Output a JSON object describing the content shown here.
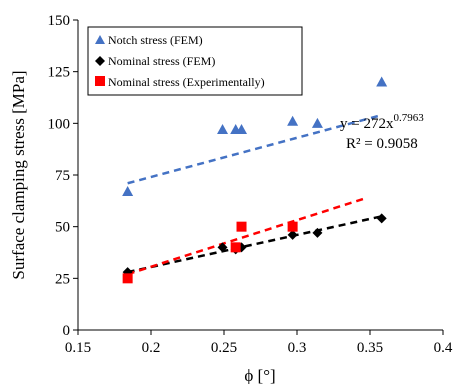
{
  "chart_data": {
    "type": "scatter",
    "xlabel": "ϕ [°]",
    "ylabel": "Surface clamping stress [MPa]",
    "xlim": [
      0.15,
      0.4
    ],
    "ylim": [
      0,
      150
    ],
    "xticks": [
      0.15,
      0.2,
      0.25,
      0.3,
      0.35,
      0.4
    ],
    "xtick_labels": [
      "0.15",
      "0.2",
      "0.25",
      "0.3",
      "0.35",
      "0.4"
    ],
    "yticks": [
      0,
      25,
      50,
      75,
      100,
      125,
      150
    ],
    "ytick_labels": [
      "0",
      "25",
      "50",
      "75",
      "100",
      "125",
      "150"
    ],
    "grid": false,
    "legend_position": "top-left",
    "series": [
      {
        "name": "Notch stress (FEM)",
        "marker": "triangle",
        "color": "#4472c4",
        "x": [
          0.184,
          0.249,
          0.258,
          0.262,
          0.297,
          0.314,
          0.358
        ],
        "y": [
          67,
          97,
          97,
          97,
          101,
          100,
          120
        ],
        "trend": {
          "x": [
            0.184,
            0.358
          ],
          "y": [
            71,
            104
          ],
          "style": "dashed",
          "color": "#4472c4"
        }
      },
      {
        "name": "Nominal stress (FEM)",
        "marker": "diamond",
        "color": "#000000",
        "x": [
          0.184,
          0.249,
          0.258,
          0.262,
          0.297,
          0.314,
          0.358
        ],
        "y": [
          28,
          40,
          39,
          40,
          46,
          47,
          54
        ],
        "trend": {
          "x": [
            0.184,
            0.358
          ],
          "y": [
            28,
            55
          ],
          "style": "dashed",
          "color": "#000000"
        }
      },
      {
        "name": "Nominal stress (Experimentally)",
        "marker": "square",
        "color": "#ff0000",
        "x": [
          0.184,
          0.258,
          0.262,
          0.297
        ],
        "y": [
          25,
          40,
          50,
          50
        ],
        "trend": {
          "x": [
            0.184,
            0.348
          ],
          "y": [
            27,
            64
          ],
          "style": "dashed",
          "color": "#ff0000"
        }
      }
    ],
    "annotations": {
      "equation_base": "y = 272x",
      "equation_exponent": "0.7963",
      "r2_text": "R² = 0.9058"
    }
  }
}
